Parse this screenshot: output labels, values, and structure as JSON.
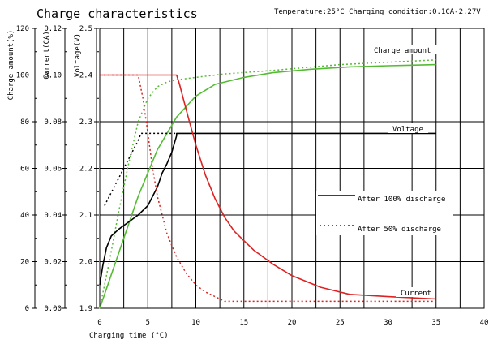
{
  "title": "Charge characteristics",
  "header_note": "Temperature:25°C Charging condition:0.1CA-2.27V",
  "chart_data": {
    "type": "line",
    "title": "Charge characteristics",
    "xlabel": "Charging time (°C)",
    "xlim": [
      0,
      40
    ],
    "x_ticks": [
      "0",
      "5",
      "10",
      "15",
      "20",
      "25",
      "30",
      "35",
      "40"
    ],
    "grid": true,
    "axes": {
      "charge_amount": {
        "label": "Charge amount(%)",
        "range": [
          0,
          120
        ],
        "ticks": [
          "0",
          "20",
          "40",
          "60",
          "80",
          "100",
          "120"
        ]
      },
      "current": {
        "label": "Current(CA)",
        "range": [
          0,
          0.12
        ],
        "ticks": [
          "0.00",
          "0.02",
          "0.04",
          "0.06",
          "0.08",
          "0.10",
          "0.12"
        ]
      },
      "voltage": {
        "label": "Voltage(V)",
        "range": [
          1.9,
          2.5
        ],
        "ticks": [
          "1.9",
          "2.0",
          "2.1",
          "2.2",
          "2.3",
          "2.4",
          "2.5"
        ]
      }
    },
    "legend": {
      "placement": "center-right",
      "entries": [
        {
          "label": "After 100% discharge",
          "style": "solid"
        },
        {
          "label": "After 50% discharge",
          "style": "dotted"
        }
      ]
    },
    "annotations": [
      "Charge amount",
      "Voltage",
      "Current"
    ],
    "colors": {
      "charge": "#55bb33",
      "voltage": "#000000",
      "current": "#dd2222"
    },
    "series": [
      {
        "quantity": "charge",
        "axis": "charge_amount",
        "style": "solid",
        "x": [
          0,
          2,
          4,
          6,
          8,
          10,
          12,
          15,
          18,
          22,
          26,
          30,
          35
        ],
        "y": [
          0,
          24,
          48,
          68,
          82,
          91,
          96,
          99,
          101,
          102.5,
          103.5,
          104,
          104.5
        ]
      },
      {
        "quantity": "charge",
        "axis": "charge_amount",
        "style": "dotted",
        "x": [
          0,
          1,
          2,
          3,
          4,
          5,
          6,
          7,
          8,
          10,
          13,
          18,
          25,
          35
        ],
        "y": [
          0,
          20,
          42,
          62,
          80,
          90,
          95,
          97,
          98,
          99,
          100.5,
          102,
          104.5,
          106.5
        ]
      },
      {
        "quantity": "voltage",
        "axis": "voltage",
        "style": "solid",
        "x": [
          0,
          0.3,
          0.7,
          1.2,
          2,
          3,
          4,
          5,
          6,
          6.5,
          7,
          7.5,
          8,
          8,
          35
        ],
        "y": [
          1.95,
          1.99,
          2.03,
          2.055,
          2.07,
          2.085,
          2.1,
          2.12,
          2.16,
          2.19,
          2.21,
          2.235,
          2.27,
          2.275,
          2.275
        ]
      },
      {
        "quantity": "voltage",
        "axis": "voltage",
        "style": "dotted",
        "x": [
          0.5,
          1,
          2,
          3,
          4,
          4.3,
          5,
          8
        ],
        "y": [
          2.12,
          2.14,
          2.18,
          2.22,
          2.26,
          2.275,
          2.275,
          2.275
        ]
      },
      {
        "quantity": "current",
        "axis": "current",
        "style": "solid",
        "x": [
          0,
          8,
          8.3,
          9,
          10,
          11,
          12,
          13,
          14,
          16,
          18,
          20,
          23,
          26,
          30,
          35
        ],
        "y": [
          0.1,
          0.1,
          0.096,
          0.085,
          0.07,
          0.057,
          0.047,
          0.039,
          0.033,
          0.025,
          0.019,
          0.014,
          0.009,
          0.006,
          0.005,
          0.004
        ]
      },
      {
        "quantity": "current",
        "axis": "current",
        "style": "dotted",
        "x": [
          0,
          4,
          4.5,
          5,
          5.5,
          6,
          7,
          8,
          9,
          10,
          11,
          12,
          13,
          15,
          20,
          35
        ],
        "y": [
          0.1,
          0.1,
          0.09,
          0.075,
          0.06,
          0.048,
          0.032,
          0.022,
          0.015,
          0.01,
          0.007,
          0.005,
          0.003,
          0.003,
          0.003,
          0.003
        ]
      }
    ]
  }
}
